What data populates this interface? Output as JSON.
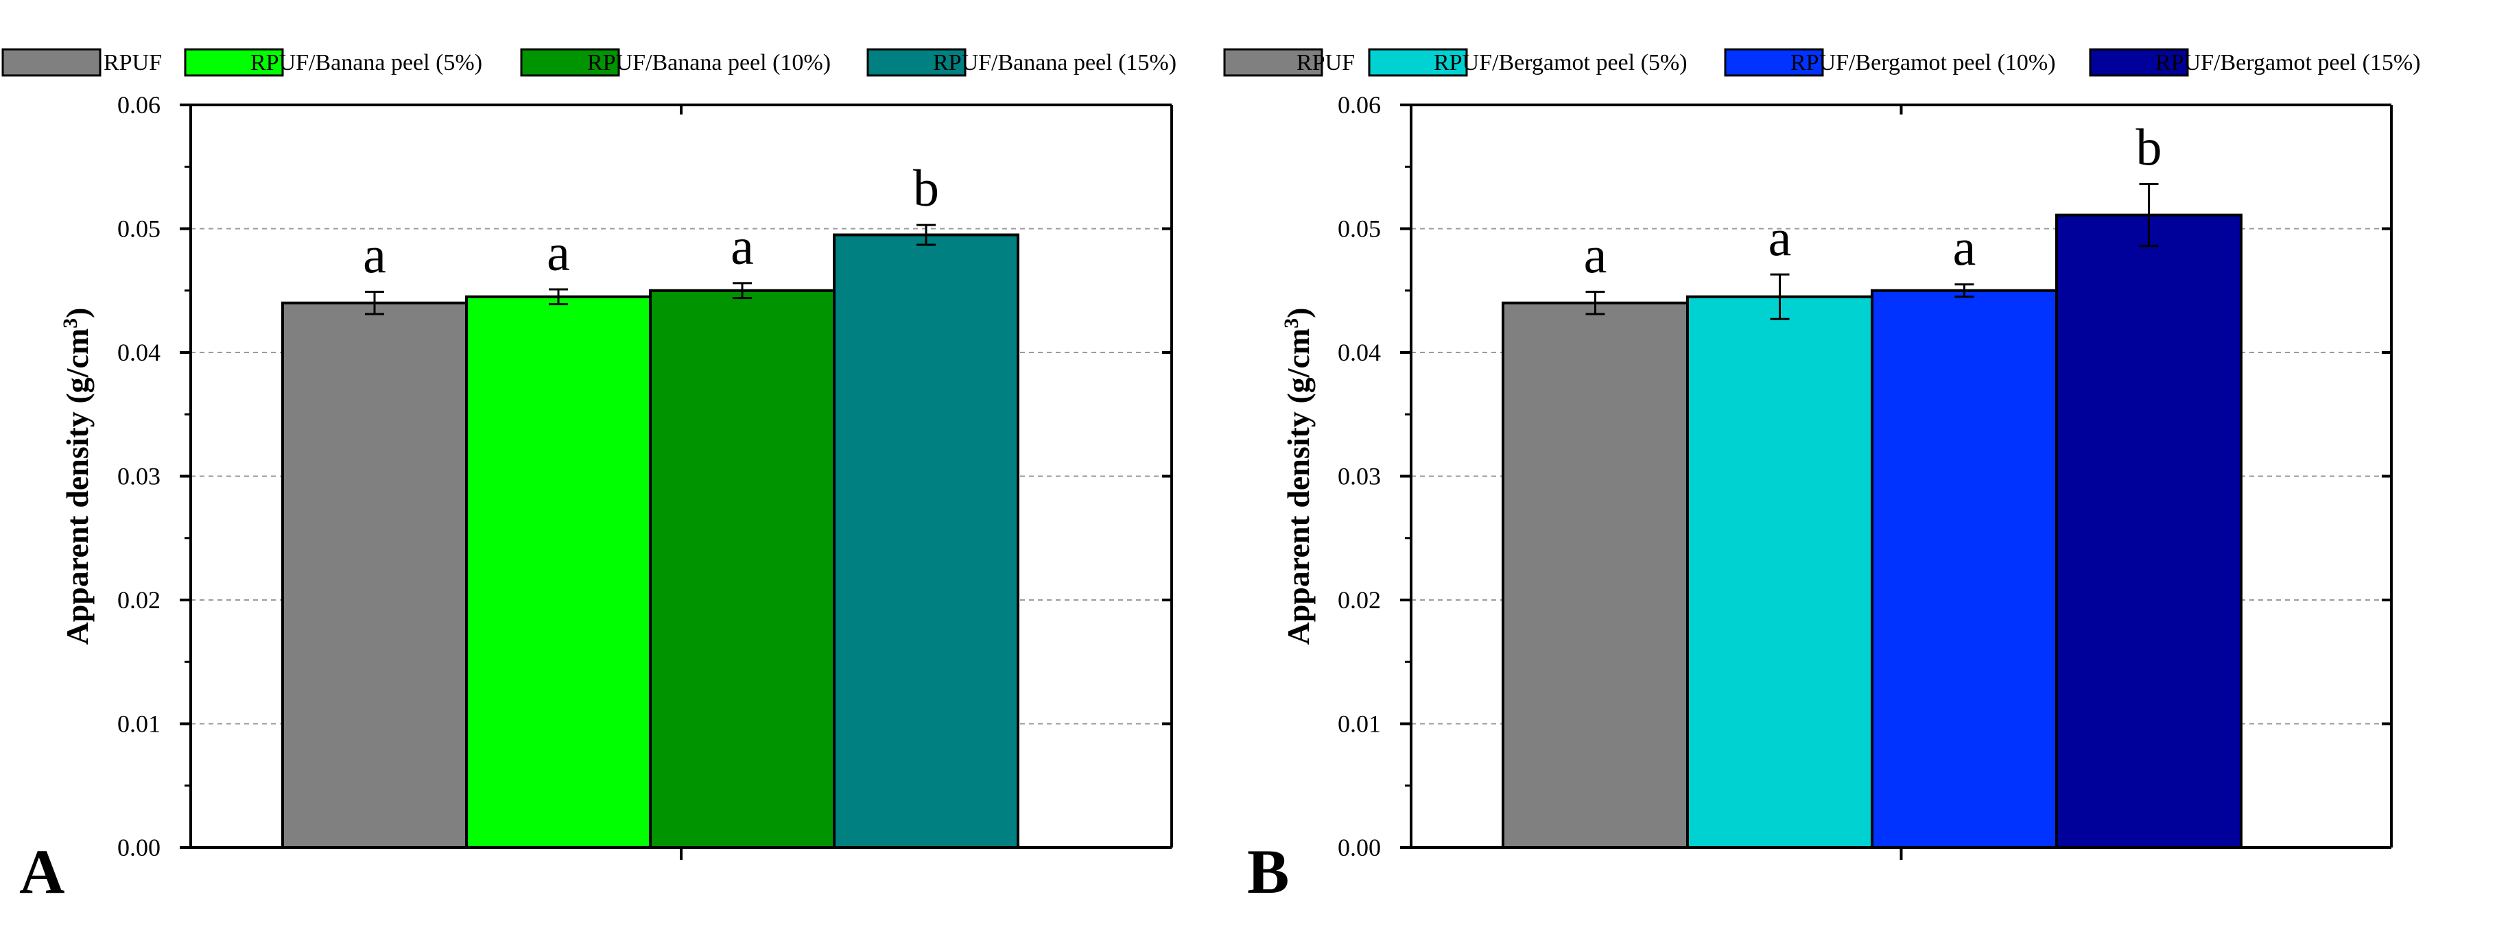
{
  "legend": [
    {
      "label": "RPUF",
      "color": "#808080"
    },
    {
      "label": "RPUF/Banana peel (5%)",
      "color": "#00FF00"
    },
    {
      "label": "RPUF/Banana peel (10%)",
      "color": "#009400"
    },
    {
      "label": "RPUF/Banana peel (15%)",
      "color": "#008080"
    },
    {
      "label": "RPUF",
      "color": "#808080"
    },
    {
      "label": "RPUF/Bergamot peel (5%)",
      "color": "#00D2D2"
    },
    {
      "label": "RPUF/Bergamot peel (10%)",
      "color": "#0033FF"
    },
    {
      "label": "RPUF/Bergamot peel (15%)",
      "color": "#00009A"
    }
  ],
  "chart_data": [
    {
      "type": "bar",
      "panel_label": "A",
      "ylabel_main": "Apparent density (g/cm",
      "ylabel_sup": "3",
      "ylabel_end": ")",
      "ylim": [
        0,
        0.06
      ],
      "yticks": [
        "0.00",
        "0.01",
        "0.02",
        "0.03",
        "0.04",
        "0.05",
        "0.06"
      ],
      "grid": "horizontal dashed",
      "categories": [
        "RPUF",
        "RPUF/Banana peel (5%)",
        "RPUF/Banana peel (10%)",
        "RPUF/Banana peel (15%)"
      ],
      "values": [
        0.044,
        0.0445,
        0.045,
        0.0495
      ],
      "errors": [
        0.0009,
        0.0006,
        0.0006,
        0.0008
      ],
      "colors": [
        "#808080",
        "#00FF00",
        "#009400",
        "#008080"
      ],
      "annotations": [
        "a",
        "a",
        "a",
        "b"
      ]
    },
    {
      "type": "bar",
      "panel_label": "B",
      "ylabel_main": "Apparent density (g/cm",
      "ylabel_sup": "3",
      "ylabel_end": ")",
      "ylim": [
        0,
        0.06
      ],
      "yticks": [
        "0.00",
        "0.01",
        "0.02",
        "0.03",
        "0.04",
        "0.05",
        "0.06"
      ],
      "grid": "horizontal dashed",
      "categories": [
        "RPUF",
        "RPUF/Bergamot peel (5%)",
        "RPUF/Bergamot peel (10%)",
        "RPUF/Bergamot peel (15%)"
      ],
      "values": [
        0.044,
        0.0445,
        0.045,
        0.0511
      ],
      "errors": [
        0.0009,
        0.0018,
        0.0005,
        0.0025
      ],
      "colors": [
        "#808080",
        "#00D2D2",
        "#0033FF",
        "#00009A"
      ],
      "annotations": [
        "a",
        "a",
        "a",
        "b"
      ]
    }
  ]
}
